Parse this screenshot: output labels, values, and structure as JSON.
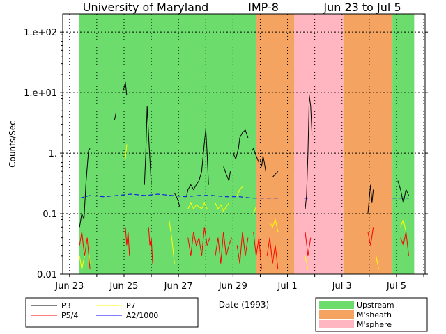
{
  "chart_data": {
    "type": "line",
    "title_parts": [
      "University of Maryland",
      "IMP-8",
      "Jun 23 to Jul 5"
    ],
    "xlabel": "Date (1993)",
    "ylabel": "Counts/Sec",
    "y_scale": "log",
    "ylim": [
      0.01,
      200
    ],
    "xlim": [
      0,
      13.3
    ],
    "x_ticks": [
      {
        "day": 0.25,
        "label": "Jun 23"
      },
      {
        "day": 2.25,
        "label": "Jun 25"
      },
      {
        "day": 4.25,
        "label": "Jun 27"
      },
      {
        "day": 6.25,
        "label": "Jun 29"
      },
      {
        "day": 8.25,
        "label": "Jul 1"
      },
      {
        "day": 10.25,
        "label": "Jul 3"
      },
      {
        "day": 12.25,
        "label": "Jul 5"
      }
    ],
    "y_ticks": [
      {
        "value": 100,
        "label": "1.e+02"
      },
      {
        "value": 10,
        "label": "1.e+01"
      },
      {
        "value": 1,
        "label": "1."
      },
      {
        "value": 0.1,
        "label": "0.1"
      },
      {
        "value": 0.01,
        "label": "0.01"
      }
    ],
    "regions": [
      {
        "name": "Upstream",
        "start": 0.6,
        "end": 7.1,
        "color": "#6cdc6c"
      },
      {
        "name": "M'sheath",
        "start": 7.1,
        "end": 8.5,
        "color": "#f4a460"
      },
      {
        "name": "M'sphere",
        "start": 8.5,
        "end": 10.3,
        "color": "#ffb6c1"
      },
      {
        "name": "M'sheath",
        "start": 10.3,
        "end": 12.1,
        "color": "#f4a460"
      },
      {
        "name": "Upstream",
        "start": 12.1,
        "end": 12.9,
        "color": "#6cdc6c"
      }
    ],
    "region_legend": [
      {
        "label": "Upstream",
        "color": "#6cdc6c"
      },
      {
        "label": "M'sheath",
        "color": "#f4a460"
      },
      {
        "label": "M'sphere",
        "color": "#ffb6c1"
      }
    ],
    "series": [
      {
        "name": "P3",
        "color": "#000000",
        "segments": [
          [
            [
              0.62,
              0.06
            ],
            [
              0.7,
              0.1
            ],
            [
              0.78,
              0.08
            ],
            [
              0.85,
              0.3
            ],
            [
              0.9,
              0.6
            ],
            [
              0.95,
              1.1
            ],
            [
              1.0,
              1.2
            ]
          ],
          [
            [
              1.9,
              3.5
            ],
            [
              1.95,
              4.5
            ]
          ],
          [
            [
              2.2,
              10
            ],
            [
              2.25,
              12
            ],
            [
              2.3,
              15
            ],
            [
              2.35,
              9
            ]
          ],
          [
            [
              3.0,
              0.3
            ],
            [
              3.05,
              1.0
            ],
            [
              3.1,
              6.0
            ],
            [
              3.15,
              2.0
            ],
            [
              3.2,
              0.8
            ],
            [
              3.25,
              0.3
            ]
          ],
          [
            [
              4.1,
              0.22
            ],
            [
              4.2,
              0.18
            ],
            [
              4.3,
              0.13
            ]
          ],
          [
            [
              4.55,
              0.2
            ],
            [
              4.6,
              0.25
            ],
            [
              4.7,
              0.3
            ],
            [
              4.8,
              0.25
            ],
            [
              4.9,
              0.3
            ],
            [
              5.0,
              0.35
            ],
            [
              5.1,
              0.5
            ],
            [
              5.2,
              1.5
            ],
            [
              5.25,
              2.5
            ],
            [
              5.3,
              1.0
            ],
            [
              5.35,
              0.3
            ]
          ],
          [
            [
              5.9,
              0.6
            ],
            [
              6.0,
              0.45
            ],
            [
              6.1,
              0.35
            ],
            [
              6.15,
              0.5
            ]
          ],
          [
            [
              6.25,
              1.0
            ],
            [
              6.35,
              0.8
            ],
            [
              6.45,
              1.2
            ],
            [
              6.5,
              1.8
            ],
            [
              6.6,
              2.2
            ],
            [
              6.7,
              2.4
            ],
            [
              6.8,
              1.8
            ]
          ],
          [
            [
              6.95,
              1.1
            ],
            [
              7.0,
              1.2
            ],
            [
              7.1,
              0.9
            ],
            [
              7.2,
              0.7
            ]
          ],
          [
            [
              7.25,
              0.8
            ],
            [
              7.3,
              0.6
            ],
            [
              7.35,
              0.9
            ],
            [
              7.4,
              0.7
            ],
            [
              7.45,
              0.5
            ]
          ],
          [
            [
              7.7,
              0.4
            ],
            [
              7.8,
              0.45
            ],
            [
              7.9,
              0.5
            ]
          ],
          [
            [
              8.9,
              0.12
            ],
            [
              8.95,
              0.2
            ],
            [
              9.0,
              1.0
            ],
            [
              9.05,
              9.0
            ],
            [
              9.1,
              6.0
            ],
            [
              9.15,
              2.0
            ]
          ],
          [
            [
              11.2,
              0.1
            ],
            [
              11.3,
              0.3
            ],
            [
              11.35,
              0.15
            ],
            [
              11.4,
              0.25
            ]
          ],
          [
            [
              12.3,
              0.35
            ],
            [
              12.4,
              0.25
            ],
            [
              12.5,
              0.15
            ],
            [
              12.6,
              0.25
            ],
            [
              12.7,
              0.2
            ]
          ]
        ]
      },
      {
        "name": "P7",
        "color": "#ffff00",
        "segments": [
          [
            [
              0.62,
              0.02
            ],
            [
              0.7,
              0.012
            ],
            [
              0.8,
              0.02
            ],
            [
              0.9,
              0.04
            ],
            [
              1.0,
              0.015
            ]
          ],
          [
            [
              2.3,
              0.8
            ],
            [
              2.35,
              1.4
            ]
          ],
          [
            [
              3.9,
              0.08
            ],
            [
              4.0,
              0.04
            ],
            [
              4.1,
              0.015
            ]
          ],
          [
            [
              4.6,
              0.12
            ],
            [
              4.7,
              0.15
            ],
            [
              4.8,
              0.12
            ],
            [
              4.9,
              0.14
            ],
            [
              5.0,
              0.13
            ],
            [
              5.1,
              0.12
            ],
            [
              5.2,
              0.15
            ],
            [
              5.3,
              0.12
            ]
          ],
          [
            [
              5.6,
              0.15
            ],
            [
              5.7,
              0.12
            ],
            [
              5.8,
              0.14
            ],
            [
              5.9,
              0.11
            ],
            [
              6.0,
              0.13
            ],
            [
              6.1,
              0.15
            ]
          ],
          [
            [
              6.4,
              0.2
            ],
            [
              6.5,
              0.25
            ],
            [
              6.6,
              0.28
            ]
          ],
          [
            [
              7.0,
              0.1
            ],
            [
              7.1,
              0.13
            ]
          ],
          [
            [
              7.6,
              0.07
            ],
            [
              7.7,
              0.06
            ],
            [
              7.8,
              0.08
            ],
            [
              7.9,
              0.05
            ]
          ],
          [
            [
              8.9,
              0.02
            ],
            [
              9.0,
              0.012
            ]
          ],
          [
            [
              11.5,
              0.02
            ],
            [
              11.6,
              0.012
            ]
          ],
          [
            [
              12.4,
              0.06
            ],
            [
              12.5,
              0.08
            ],
            [
              12.6,
              0.05
            ]
          ]
        ]
      },
      {
        "name": "P5/4",
        "color": "#ff0000",
        "segments": [
          [
            [
              0.62,
              0.03
            ],
            [
              0.7,
              0.05
            ],
            [
              0.8,
              0.02
            ],
            [
              0.9,
              0.04
            ],
            [
              1.0,
              0.012
            ]
          ],
          [
            [
              2.3,
              0.06
            ],
            [
              2.35,
              0.03
            ],
            [
              2.4,
              0.05
            ],
            [
              2.45,
              0.02
            ]
          ],
          [
            [
              3.15,
              0.06
            ],
            [
              3.2,
              0.03
            ],
            [
              3.25,
              0.04
            ],
            [
              3.3,
              0.015
            ]
          ],
          [
            [
              4.6,
              0.04
            ],
            [
              4.7,
              0.02
            ],
            [
              4.8,
              0.05
            ],
            [
              4.9,
              0.03
            ],
            [
              5.0,
              0.04
            ],
            [
              5.1,
              0.02
            ],
            [
              5.2,
              0.06
            ],
            [
              5.3,
              0.03
            ],
            [
              5.4,
              0.04
            ]
          ],
          [
            [
              5.6,
              0.02
            ],
            [
              5.7,
              0.04
            ],
            [
              5.8,
              0.015
            ],
            [
              5.9,
              0.05
            ],
            [
              6.0,
              0.02
            ],
            [
              6.1,
              0.03
            ],
            [
              6.2,
              0.04
            ]
          ],
          [
            [
              6.4,
              0.03
            ],
            [
              6.5,
              0.015
            ],
            [
              6.6,
              0.05
            ],
            [
              6.7,
              0.02
            ],
            [
              6.8,
              0.04
            ]
          ],
          [
            [
              7.0,
              0.05
            ],
            [
              7.1,
              0.02
            ],
            [
              7.2,
              0.04
            ],
            [
              7.3,
              0.012
            ]
          ],
          [
            [
              7.5,
              0.02
            ],
            [
              7.6,
              0.04
            ],
            [
              7.7,
              0.015
            ],
            [
              7.8,
              0.03
            ],
            [
              7.9,
              0.012
            ]
          ],
          [
            [
              8.9,
              0.05
            ],
            [
              9.0,
              0.02
            ],
            [
              9.1,
              0.04
            ]
          ],
          [
            [
              11.2,
              0.05
            ],
            [
              11.3,
              0.03
            ],
            [
              11.4,
              0.06
            ]
          ],
          [
            [
              12.4,
              0.04
            ],
            [
              12.5,
              0.03
            ],
            [
              12.6,
              0.05
            ],
            [
              12.7,
              0.02
            ]
          ]
        ]
      },
      {
        "name": "A2/1000",
        "color": "#0000ff",
        "dashed": true,
        "segments": [
          [
            [
              0.62,
              0.18
            ],
            [
              1.0,
              0.2
            ],
            [
              1.5,
              0.19
            ],
            [
              2.0,
              0.2
            ],
            [
              2.5,
              0.21
            ],
            [
              3.0,
              0.2
            ],
            [
              3.5,
              0.21
            ],
            [
              4.0,
              0.2
            ],
            [
              4.5,
              0.19
            ],
            [
              5.0,
              0.2
            ],
            [
              5.5,
              0.2
            ],
            [
              6.0,
              0.19
            ],
            [
              6.5,
              0.19
            ],
            [
              7.0,
              0.18
            ],
            [
              7.5,
              0.18
            ],
            [
              7.95,
              0.18
            ]
          ],
          [
            [
              8.85,
              0.18
            ],
            [
              9.1,
              0.18
            ]
          ],
          [
            [
              12.1,
              0.18
            ],
            [
              12.7,
              0.18
            ]
          ]
        ]
      }
    ],
    "series_legend": [
      {
        "label": "P3",
        "color": "#000000"
      },
      {
        "label": "P7",
        "color": "#ffff00"
      },
      {
        "label": "P5/4",
        "color": "#ff0000"
      },
      {
        "label": "A2/1000",
        "color": "#0000ff"
      }
    ]
  }
}
